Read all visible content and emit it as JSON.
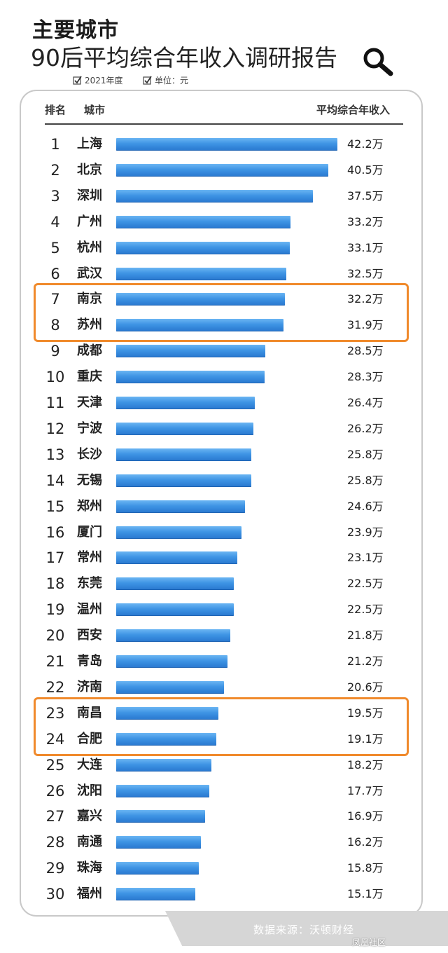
{
  "header": {
    "title_line1": "主要城市",
    "title_line2": "90后平均综合年收入调研报告",
    "meta_year": "2021年度",
    "meta_unit": "单位：元"
  },
  "columns": {
    "rank": "排名",
    "city": "城市",
    "income": "平均综合年收入"
  },
  "colors": {
    "bar": "#3e94e4",
    "highlight": "#f08a2c"
  },
  "icons": {
    "search": "magnifier-icon",
    "check": "checkbox-icon"
  },
  "chart_data": {
    "type": "bar",
    "title": "90后平均综合年收入调研报告",
    "categories": [
      "上海",
      "北京",
      "深圳",
      "广州",
      "杭州",
      "武汉",
      "南京",
      "苏州",
      "成都",
      "重庆",
      "天津",
      "宁波",
      "长沙",
      "无锡",
      "郑州",
      "厦门",
      "常州",
      "东莞",
      "温州",
      "西安",
      "青岛",
      "济南",
      "南昌",
      "合肥",
      "大连",
      "沈阳",
      "嘉兴",
      "南通",
      "珠海",
      "福州"
    ],
    "ranks": [
      "1",
      "2",
      "3",
      "4",
      "5",
      "6",
      "7",
      "8",
      "9",
      "10",
      "11",
      "12",
      "13",
      "14",
      "15",
      "16",
      "17",
      "18",
      "19",
      "20",
      "21",
      "22",
      "23",
      "24",
      "25",
      "26",
      "27",
      "28",
      "29",
      "30"
    ],
    "values": [
      42.2,
      40.5,
      37.5,
      33.2,
      33.1,
      32.5,
      32.2,
      31.9,
      28.5,
      28.3,
      26.4,
      26.2,
      25.8,
      25.8,
      24.6,
      23.9,
      23.1,
      22.5,
      22.5,
      21.8,
      21.2,
      20.6,
      19.5,
      19.1,
      18.2,
      17.7,
      16.9,
      16.2,
      15.8,
      15.1
    ],
    "value_labels": [
      "42.2万",
      "40.5万",
      "37.5万",
      "33.2万",
      "33.1万",
      "32.5万",
      "32.2万",
      "31.9万",
      "28.5万",
      "28.3万",
      "26.4万",
      "26.2万",
      "25.8万",
      "25.8万",
      "24.6万",
      "23.9万",
      "23.1万",
      "22.5万",
      "22.5万",
      "21.8万",
      "21.2万",
      "20.6万",
      "19.5万",
      "19.1万",
      "18.2万",
      "17.7万",
      "16.9万",
      "16.2万",
      "15.8万",
      "15.1万"
    ],
    "highlighted_ranks": [
      [
        7,
        8
      ],
      [
        23,
        24
      ]
    ],
    "orientation": "horizontal",
    "unit": "万"
  },
  "footer": {
    "source": "数据来源：沃顿财经",
    "watermark": "凤凰社区"
  }
}
